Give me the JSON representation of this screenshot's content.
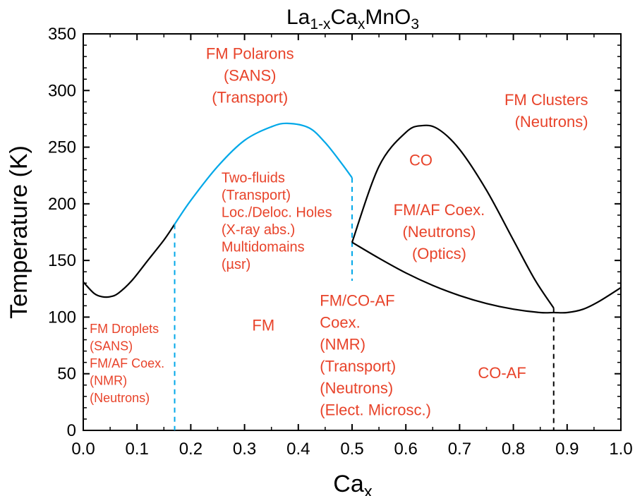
{
  "chart_data": {
    "type": "line",
    "title": {
      "base": "La",
      "sub1": "1-x",
      "mid": "Ca",
      "sub2": "x",
      "end": "MnO",
      "sub3": "3"
    },
    "xlabel": {
      "base": "Ca",
      "sub": "x"
    },
    "ylabel": "Temperature (K)",
    "xlim": [
      0.0,
      1.0
    ],
    "ylim": [
      0,
      350
    ],
    "xticks": [
      "0.0",
      "0.1",
      "0.2",
      "0.3",
      "0.4",
      "0.5",
      "0.6",
      "0.7",
      "0.8",
      "0.9",
      "1.0"
    ],
    "yticks": [
      "0",
      "50",
      "100",
      "150",
      "200",
      "250",
      "300",
      "350"
    ],
    "colors": {
      "black_curve": "#000000",
      "blue_curve": "#00a8e8",
      "label": "#e8432a"
    },
    "series": [
      {
        "style": "solid-black",
        "x": [
          0.0,
          0.02,
          0.035,
          0.05,
          0.065,
          0.09,
          0.12,
          0.15,
          0.17
        ],
        "y": [
          131,
          121,
          118,
          118,
          121,
          132,
          150,
          168,
          182
        ]
      },
      {
        "style": "solid-blue",
        "x": [
          0.17,
          0.2,
          0.25,
          0.3,
          0.35,
          0.38,
          0.42,
          0.45,
          0.48,
          0.5
        ],
        "y": [
          182,
          203,
          233,
          256,
          268,
          271,
          267,
          254,
          236,
          223
        ]
      },
      {
        "style": "dashed-blue",
        "x": [
          0.17,
          0.17
        ],
        "y": [
          182,
          0
        ]
      },
      {
        "style": "dashed-blue",
        "x": [
          0.5,
          0.5
        ],
        "y": [
          223,
          132
        ]
      },
      {
        "style": "solid-black",
        "x": [
          0.5,
          0.55,
          0.6,
          0.63,
          0.66,
          0.7,
          0.75,
          0.8,
          0.84,
          0.875
        ],
        "y": [
          166,
          233,
          263,
          269,
          266,
          248,
          212,
          168,
          133,
          108
        ]
      },
      {
        "style": "solid-black",
        "x": [
          0.5,
          0.55,
          0.6,
          0.65,
          0.7,
          0.75,
          0.8,
          0.85,
          0.875,
          0.9,
          0.93,
          0.96,
          1.0
        ],
        "y": [
          166,
          152,
          139,
          128,
          119,
          112,
          107,
          104,
          104,
          104,
          107,
          114,
          126
        ]
      },
      {
        "style": "dashed-black",
        "x": [
          0.875,
          0.875
        ],
        "y": [
          108,
          0
        ]
      }
    ],
    "annotations": [
      {
        "lines": [
          "FM Polarons",
          "(SANS)",
          "(Transport)"
        ],
        "x": 0.31,
        "y": 328,
        "size": "lg",
        "anchor": "middle"
      },
      {
        "lines": [
          "FM Clusters",
          "(Neutrons)"
        ],
        "x": 0.939,
        "y": 287,
        "size": "lg",
        "anchor": "end"
      },
      {
        "lines": [
          "CO"
        ],
        "x": 0.628,
        "y": 234,
        "size": "lg",
        "anchor": "middle"
      },
      {
        "lines": [
          "FM/AF Coex.",
          "(Neutrons)",
          "(Optics)"
        ],
        "x": 0.662,
        "y": 190,
        "size": "lg",
        "anchor": "middle"
      },
      {
        "lines": [
          "Two-fluids",
          "(Transport)",
          "Loc./Deloc. Holes",
          "(X-ray abs.)",
          "Multidomains",
          "(µsr)"
        ],
        "x": 0.257,
        "y": 219,
        "size": "md",
        "anchor": "start"
      },
      {
        "lines": [
          "FM Droplets",
          "(SANS)",
          "FM/AF Coex.",
          "(NMR)",
          "(Neutrons)"
        ],
        "x": 0.012,
        "y": 86,
        "size": "sm",
        "anchor": "start"
      },
      {
        "lines": [
          "FM"
        ],
        "x": 0.335,
        "y": 88,
        "size": "lg",
        "anchor": "middle"
      },
      {
        "lines": [
          "FM/CO-AF",
          "Coex.",
          "(NMR)",
          "(Transport)",
          "(Neutrons)",
          "(Elect. Microsc.)"
        ],
        "x": 0.44,
        "y": 110,
        "size": "lg",
        "anchor": "start"
      },
      {
        "lines": [
          "CO-AF"
        ],
        "x": 0.779,
        "y": 46,
        "size": "lg",
        "anchor": "middle"
      }
    ]
  }
}
